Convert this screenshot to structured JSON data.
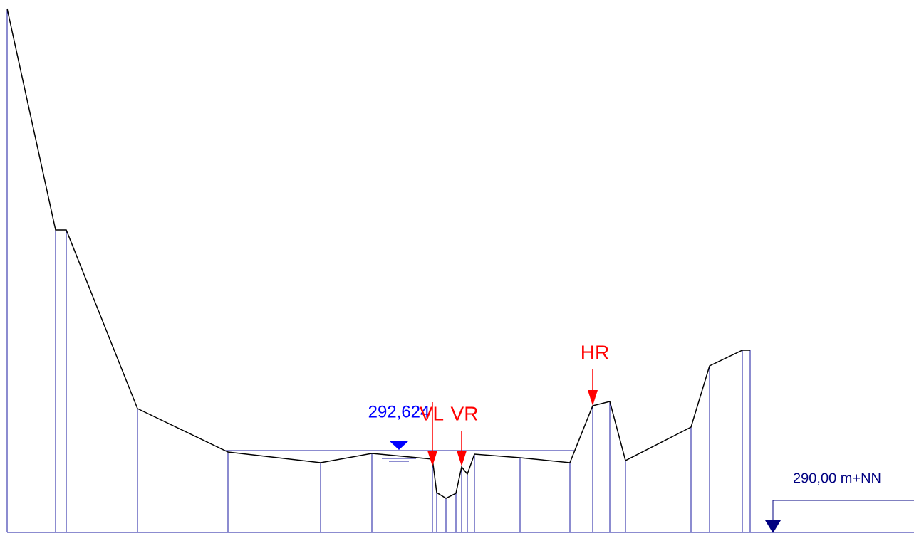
{
  "water_level": "292,624",
  "markers": [
    {
      "label": "VL"
    },
    {
      "label": "VR"
    },
    {
      "label": "HR"
    }
  ],
  "reference_level": "290,00 m+NN"
}
